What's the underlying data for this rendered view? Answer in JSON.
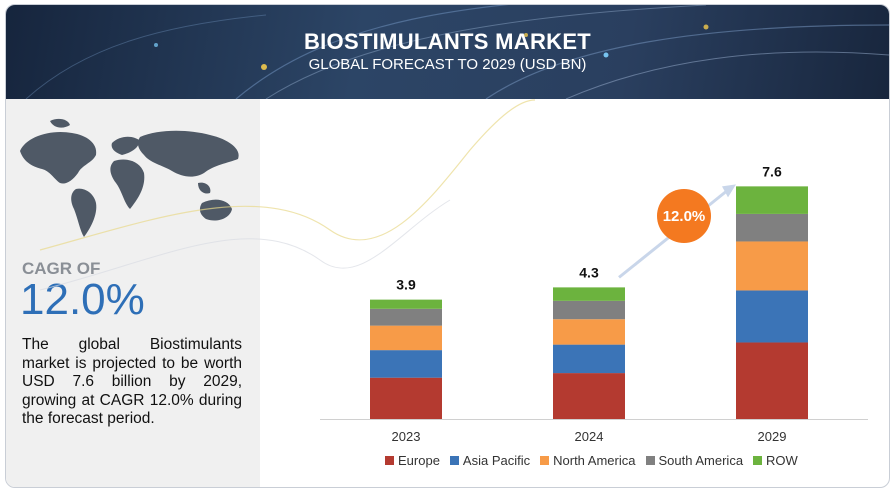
{
  "header": {
    "title": "BIOSTIMULANTS MARKET",
    "subtitle": "GLOBAL FORECAST TO 2029 (USD BN)"
  },
  "left_panel": {
    "cagr_label": "CAGR OF",
    "cagr_value": "12.0%",
    "description": "The global Biostimulants market is projected to be worth USD 7.6 billion by 2029, growing at CAGR 12.0% during the forecast period."
  },
  "colors": {
    "Europe": "#b43a30",
    "Asia Pacific": "#3b74b7",
    "North America": "#f79b48",
    "South America": "#808080",
    "ROW": "#6cb33e",
    "cagr_bubble": "#f47920"
  },
  "chart_data": {
    "type": "bar",
    "stacked": true,
    "title": "BIOSTIMULANTS MARKET",
    "subtitle": "GLOBAL FORECAST TO 2029 (USD BN)",
    "categories": [
      "2023",
      "2024",
      "2029"
    ],
    "totals": [
      "3.9",
      "4.3",
      "7.6"
    ],
    "series": [
      {
        "name": "Europe",
        "values": [
          1.35,
          1.5,
          2.5
        ]
      },
      {
        "name": "Asia Pacific",
        "values": [
          0.9,
          0.93,
          1.7
        ]
      },
      {
        "name": "North America",
        "values": [
          0.8,
          0.83,
          1.6
        ]
      },
      {
        "name": "South America",
        "values": [
          0.55,
          0.6,
          0.9
        ]
      },
      {
        "name": "ROW",
        "values": [
          0.3,
          0.44,
          0.9
        ]
      }
    ],
    "annotation": "12.0%",
    "legend_position": "bottom",
    "grid": false,
    "ylim": [
      0,
      8.2
    ]
  }
}
